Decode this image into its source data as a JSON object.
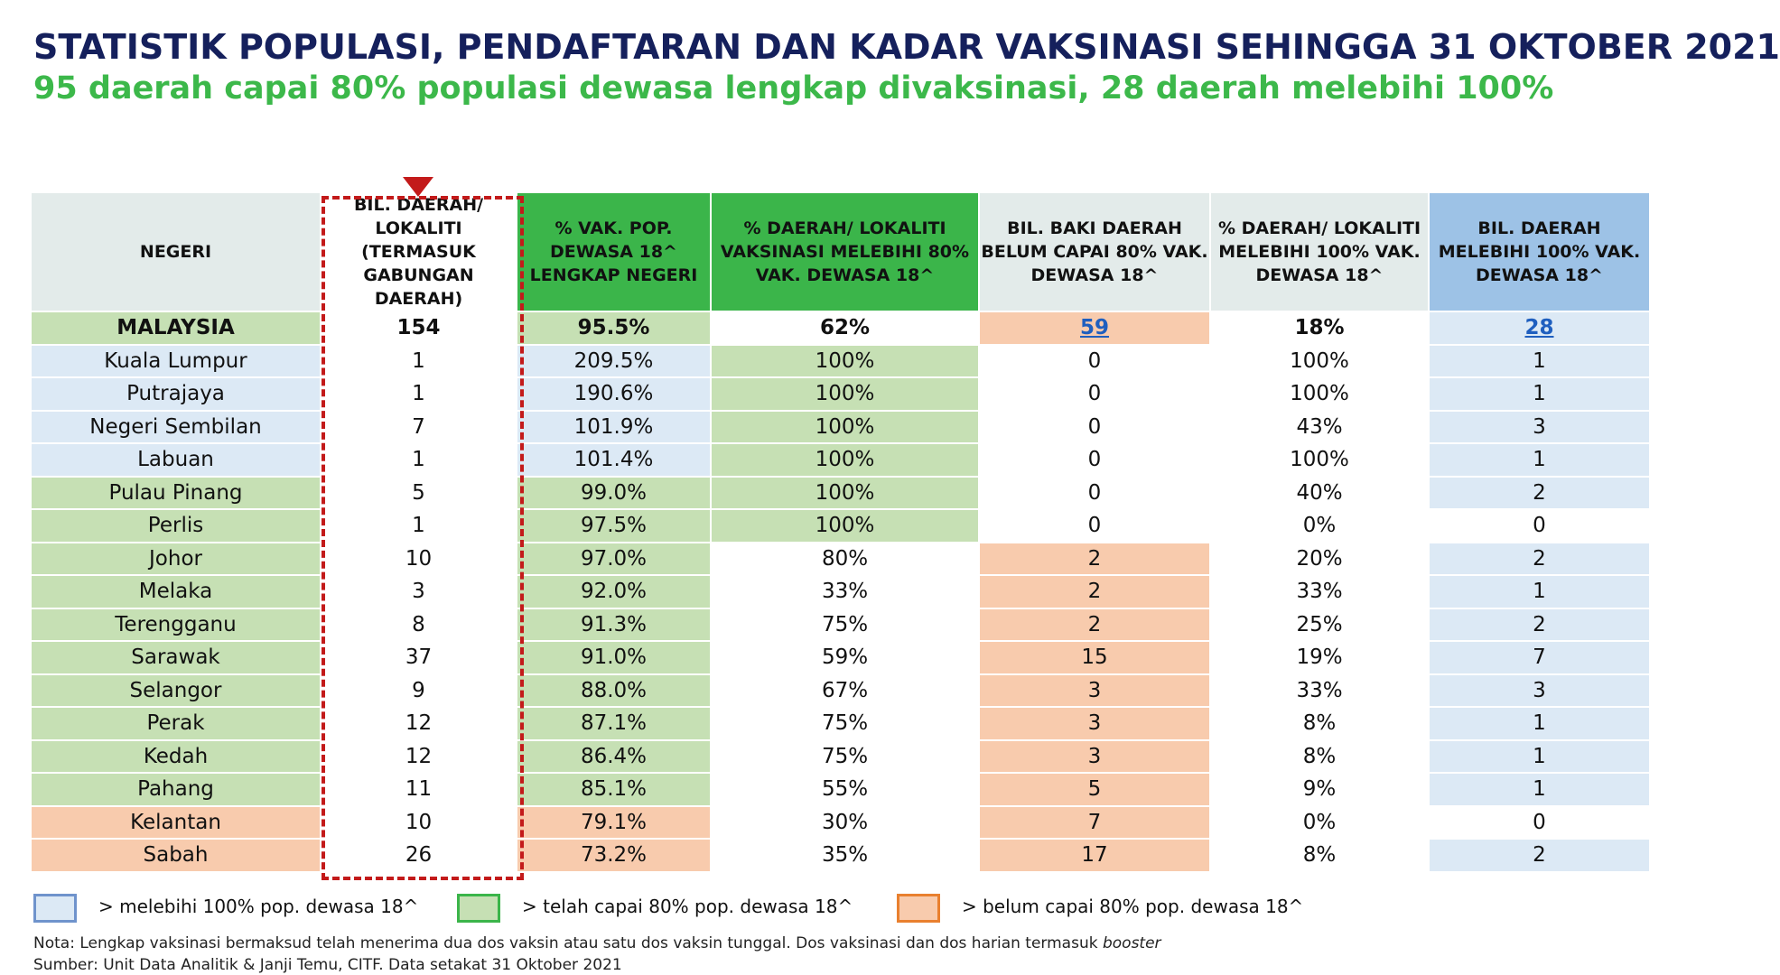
{
  "title": "STATISTIK POPULASI, PENDAFTARAN DAN KADAR VAKSINASI SEHINGGA 31 OKTOBER 2021",
  "subtitle": "95 daerah capai 80% populasi dewasa lengkap divaksinasi, 28 daerah melebihi 100%",
  "colors": {
    "title": "#15205c",
    "subtitle": "#3cb84a",
    "green_header": "#3bb54a",
    "green_fill": "#c6e0b4",
    "blue_header": "#9dc2e6",
    "blue_fill": "#dce9f5",
    "orange_fill": "#f8cbad",
    "highlight_border": "#c31a1a"
  },
  "headers": {
    "negeri": "NEGERI",
    "bil_daerah": "BIL. DAERAH/ LOKALITI (TERMASUK GABUNGAN DAERAH)",
    "pct_vak": "% VAK. POP. DEWASA 18^ LENGKAP NEGERI",
    "pct_daerah_80": "% DAERAH/ LOKALITI VAKSINASI MELEBIHI 80% VAK. DEWASA 18^",
    "bil_baki": "BIL. BAKI DAERAH BELUM CAPAI 80% VAK. DEWASA 18^",
    "pct_daerah_100": "% DAERAH/ LOKALITI MELEBIHI 100% VAK. DEWASA 18^",
    "bil_daerah_100": "BIL. DAERAH MELEBIHI 100% VAK. DEWASA 18^"
  },
  "rows": [
    {
      "negeri": "MALAYSIA",
      "bil": "154",
      "pct_vak": "95.5%",
      "pct80": "62%",
      "baki": "59",
      "pct100": "18%",
      "bil100": "28"
    },
    {
      "negeri": "Kuala Lumpur",
      "bil": "1",
      "pct_vak": "209.5%",
      "pct80": "100%",
      "baki": "0",
      "pct100": "100%",
      "bil100": "1"
    },
    {
      "negeri": "Putrajaya",
      "bil": "1",
      "pct_vak": "190.6%",
      "pct80": "100%",
      "baki": "0",
      "pct100": "100%",
      "bil100": "1"
    },
    {
      "negeri": "Negeri Sembilan",
      "bil": "7",
      "pct_vak": "101.9%",
      "pct80": "100%",
      "baki": "0",
      "pct100": "43%",
      "bil100": "3"
    },
    {
      "negeri": "Labuan",
      "bil": "1",
      "pct_vak": "101.4%",
      "pct80": "100%",
      "baki": "0",
      "pct100": "100%",
      "bil100": "1"
    },
    {
      "negeri": "Pulau Pinang",
      "bil": "5",
      "pct_vak": "99.0%",
      "pct80": "100%",
      "baki": "0",
      "pct100": "40%",
      "bil100": "2"
    },
    {
      "negeri": "Perlis",
      "bil": "1",
      "pct_vak": "97.5%",
      "pct80": "100%",
      "baki": "0",
      "pct100": "0%",
      "bil100": "0"
    },
    {
      "negeri": "Johor",
      "bil": "10",
      "pct_vak": "97.0%",
      "pct80": "80%",
      "baki": "2",
      "pct100": "20%",
      "bil100": "2"
    },
    {
      "negeri": "Melaka",
      "bil": "3",
      "pct_vak": "92.0%",
      "pct80": "33%",
      "baki": "2",
      "pct100": "33%",
      "bil100": "1"
    },
    {
      "negeri": "Terengganu",
      "bil": "8",
      "pct_vak": "91.3%",
      "pct80": "75%",
      "baki": "2",
      "pct100": "25%",
      "bil100": "2"
    },
    {
      "negeri": "Sarawak",
      "bil": "37",
      "pct_vak": "91.0%",
      "pct80": "59%",
      "baki": "15",
      "pct100": "19%",
      "bil100": "7"
    },
    {
      "negeri": "Selangor",
      "bil": "9",
      "pct_vak": "88.0%",
      "pct80": "67%",
      "baki": "3",
      "pct100": "33%",
      "bil100": "3"
    },
    {
      "negeri": "Perak",
      "bil": "12",
      "pct_vak": "87.1%",
      "pct80": "75%",
      "baki": "3",
      "pct100": "8%",
      "bil100": "1"
    },
    {
      "negeri": "Kedah",
      "bil": "12",
      "pct_vak": "86.4%",
      "pct80": "75%",
      "baki": "3",
      "pct100": "8%",
      "bil100": "1"
    },
    {
      "negeri": "Pahang",
      "bil": "11",
      "pct_vak": "85.1%",
      "pct80": "55%",
      "baki": "5",
      "pct100": "9%",
      "bil100": "1"
    },
    {
      "negeri": "Kelantan",
      "bil": "10",
      "pct_vak": "79.1%",
      "pct80": "30%",
      "baki": "7",
      "pct100": "0%",
      "bil100": "0"
    },
    {
      "negeri": "Sabah",
      "bil": "26",
      "pct_vak": "73.2%",
      "pct80": "35%",
      "baki": "17",
      "pct100": "8%",
      "bil100": "2"
    }
  ],
  "legend": [
    {
      "label": "> melebihi 100% pop. dewasa 18^"
    },
    {
      "label": "> telah capai 80% pop. dewasa 18^"
    },
    {
      "label": "> belum capai 80% pop. dewasa 18^"
    }
  ],
  "note": {
    "text": "Nota: Lengkap vaksinasi bermaksud telah menerima dua dos vaksin atau satu dos vaksin tunggal. Dos vaksinasi dan dos harian termasuk ",
    "italic": "booster"
  },
  "source": "Sumber: Unit Data Analitik & Janji Temu, CITF. Data setakat 31 Oktober 2021"
}
